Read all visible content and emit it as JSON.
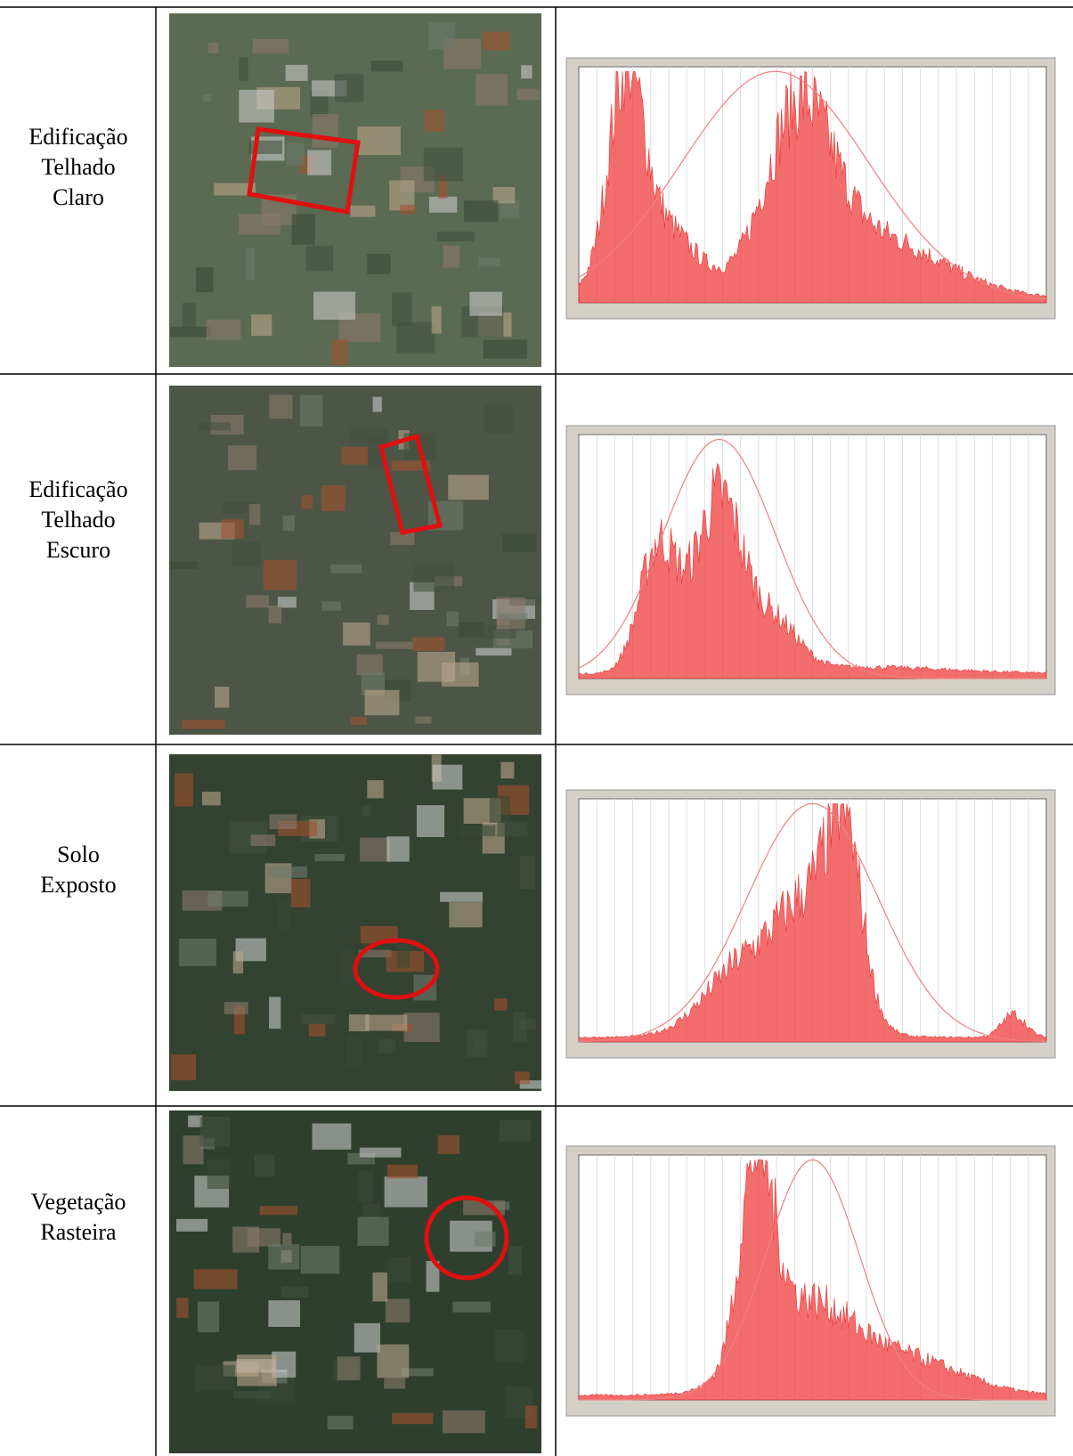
{
  "rows": [
    {
      "label": [
        "Edificação",
        "Telhado",
        "Claro"
      ]
    },
    {
      "label": [
        "Edificação",
        "Telhado",
        "Escuro"
      ]
    },
    {
      "label": [
        "Solo",
        "Exposto"
      ]
    },
    {
      "label": [
        "Vegetação",
        "Rasteira"
      ]
    }
  ]
}
